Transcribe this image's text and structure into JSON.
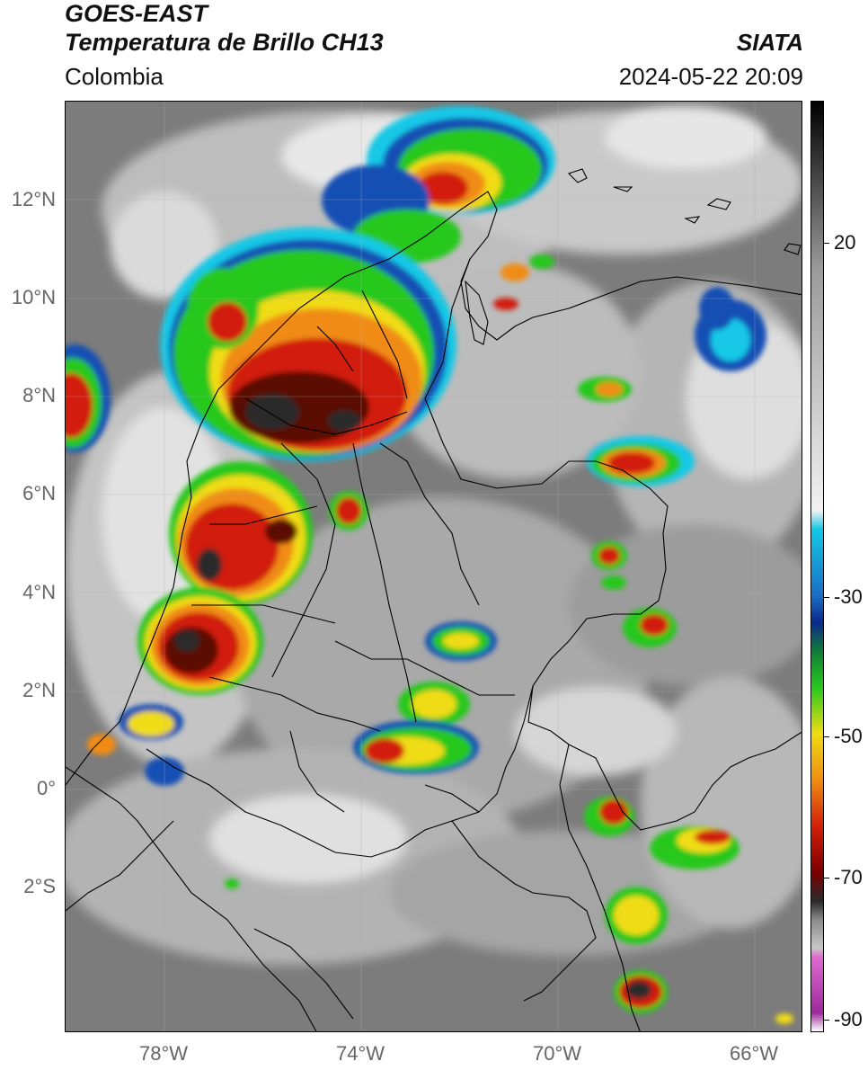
{
  "header": {
    "title_line1": "GOES-EAST",
    "title_line2": "Temperatura de Brillo CH13",
    "subtitle": "Colombia",
    "source": "SIATA",
    "datetime": "2024-05-22 20:09"
  },
  "map": {
    "lat_labels": [
      "12°N",
      "10°N",
      "8°N",
      "6°N",
      "4°N",
      "2°N",
      "0°",
      "2°S"
    ],
    "lon_labels": [
      "78°W",
      "74°W",
      "70°W",
      "66°W"
    ],
    "colors": {
      "background_clear": "#7c7c7c",
      "cloud_light": "#d9d9d9",
      "cloud_white": "#f2f2f2",
      "cyan": "#14c8e6",
      "blue": "#1450b4",
      "green": "#28c81e",
      "yellow": "#f0dc14",
      "orange": "#f08c14",
      "red": "#d21e0a",
      "dark_red": "#5a0a05",
      "black": "#1e1e1e",
      "border": "#000000"
    }
  },
  "colorbar": {
    "labels": [
      "20",
      "-30",
      "-50",
      "-70",
      "-90"
    ],
    "stops": [
      "#ffffff",
      "#9c2a9c",
      "#e06ad0",
      "#c8c8c8",
      "#8a8a8a",
      "#2a2a2a",
      "#7a0000",
      "#d21e0a",
      "#f08c14",
      "#f0dc14",
      "#28c81e",
      "#0f7a3a",
      "#0a2a8c",
      "#1a70c8",
      "#14c8e6",
      "#f2f2f2",
      "#9a9a9a",
      "#000000"
    ]
  }
}
